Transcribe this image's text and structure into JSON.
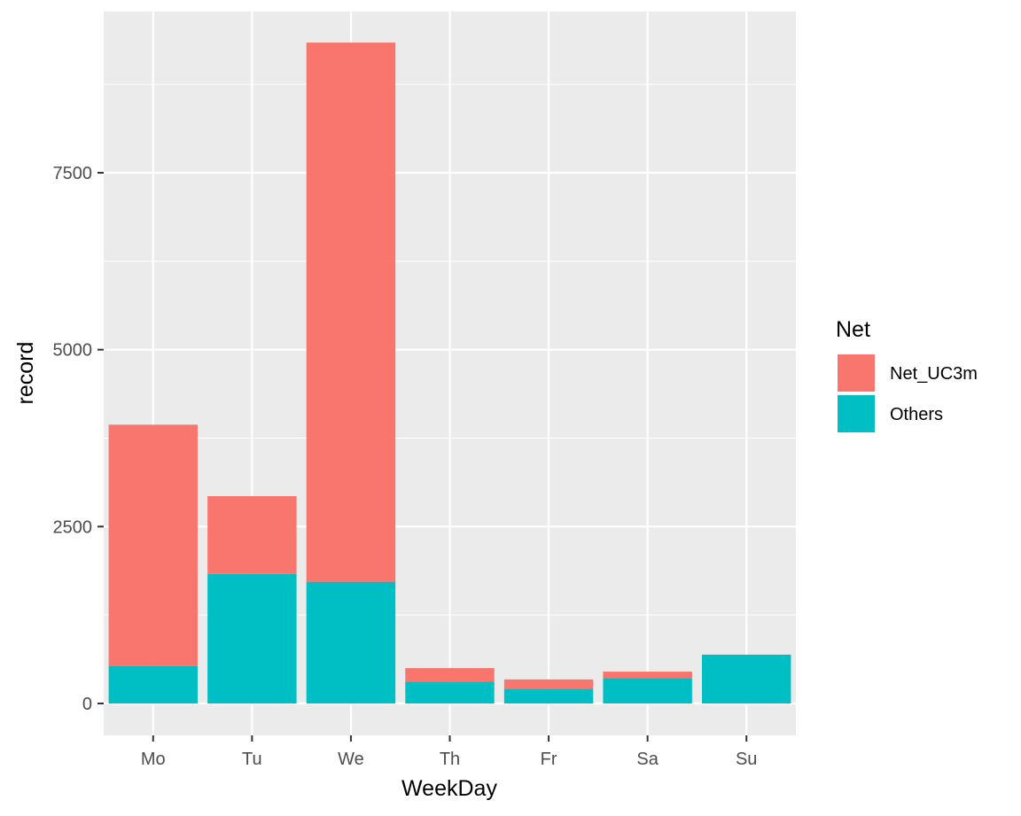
{
  "chart_data": {
    "type": "bar",
    "stacked": true,
    "title": "",
    "xlabel": "WeekDay",
    "ylabel": "record",
    "categories": [
      "Mo",
      "Tu",
      "We",
      "Th",
      "Fr",
      "Sa",
      "Su"
    ],
    "series": [
      {
        "name": "Net_UC3m",
        "color": "#F8766D",
        "values": [
          3410,
          1100,
          7620,
          190,
          130,
          90,
          0
        ]
      },
      {
        "name": "Others",
        "color": "#00BFC4",
        "values": [
          530,
          1830,
          1720,
          310,
          210,
          360,
          690
        ]
      }
    ],
    "ylim": [
      -400,
      9800
    ],
    "yticks": [
      0,
      2500,
      5000,
      7500
    ],
    "ytick_labels": [
      "0",
      "2500",
      "5000",
      "7500"
    ],
    "grid": true,
    "legend": {
      "title": "Net",
      "position": "right"
    },
    "panel_color": "#EBEBEB",
    "grid_color": "#FFFFFF"
  }
}
